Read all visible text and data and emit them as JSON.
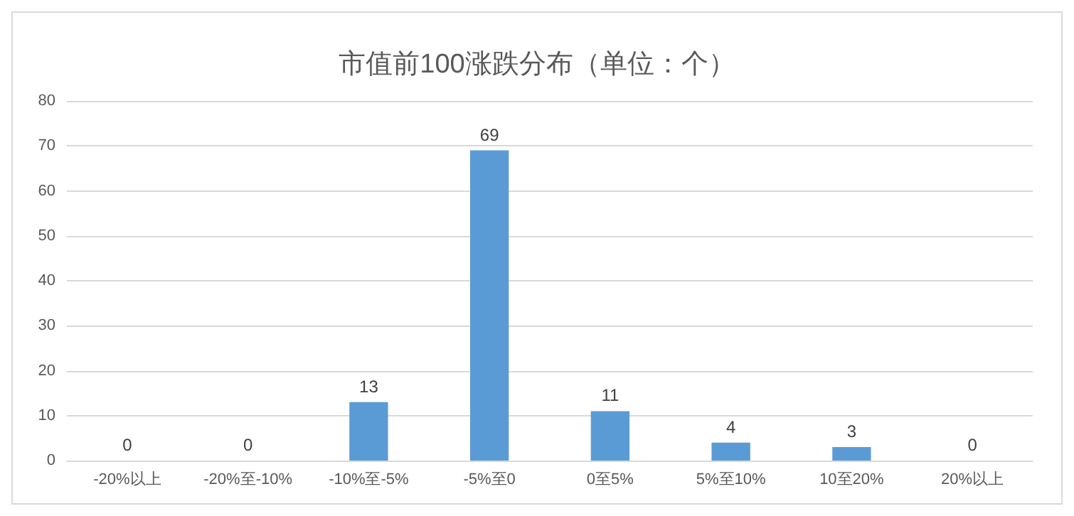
{
  "chart_data": {
    "type": "bar",
    "title": "市值前100涨跌分布（单位：个）",
    "categories": [
      "-20%以上",
      "-20%至-10%",
      "-10%至-5%",
      "-5%至0",
      "0至5%",
      "5%至10%",
      "10至20%",
      "20%以上"
    ],
    "values": [
      0,
      0,
      13,
      69,
      11,
      4,
      3,
      0
    ],
    "color": "#5b9bd5",
    "ylim": [
      0,
      80
    ],
    "yticks": [
      0,
      10,
      20,
      30,
      40,
      50,
      60,
      70,
      80
    ],
    "grid": "y",
    "data_labels": true
  }
}
